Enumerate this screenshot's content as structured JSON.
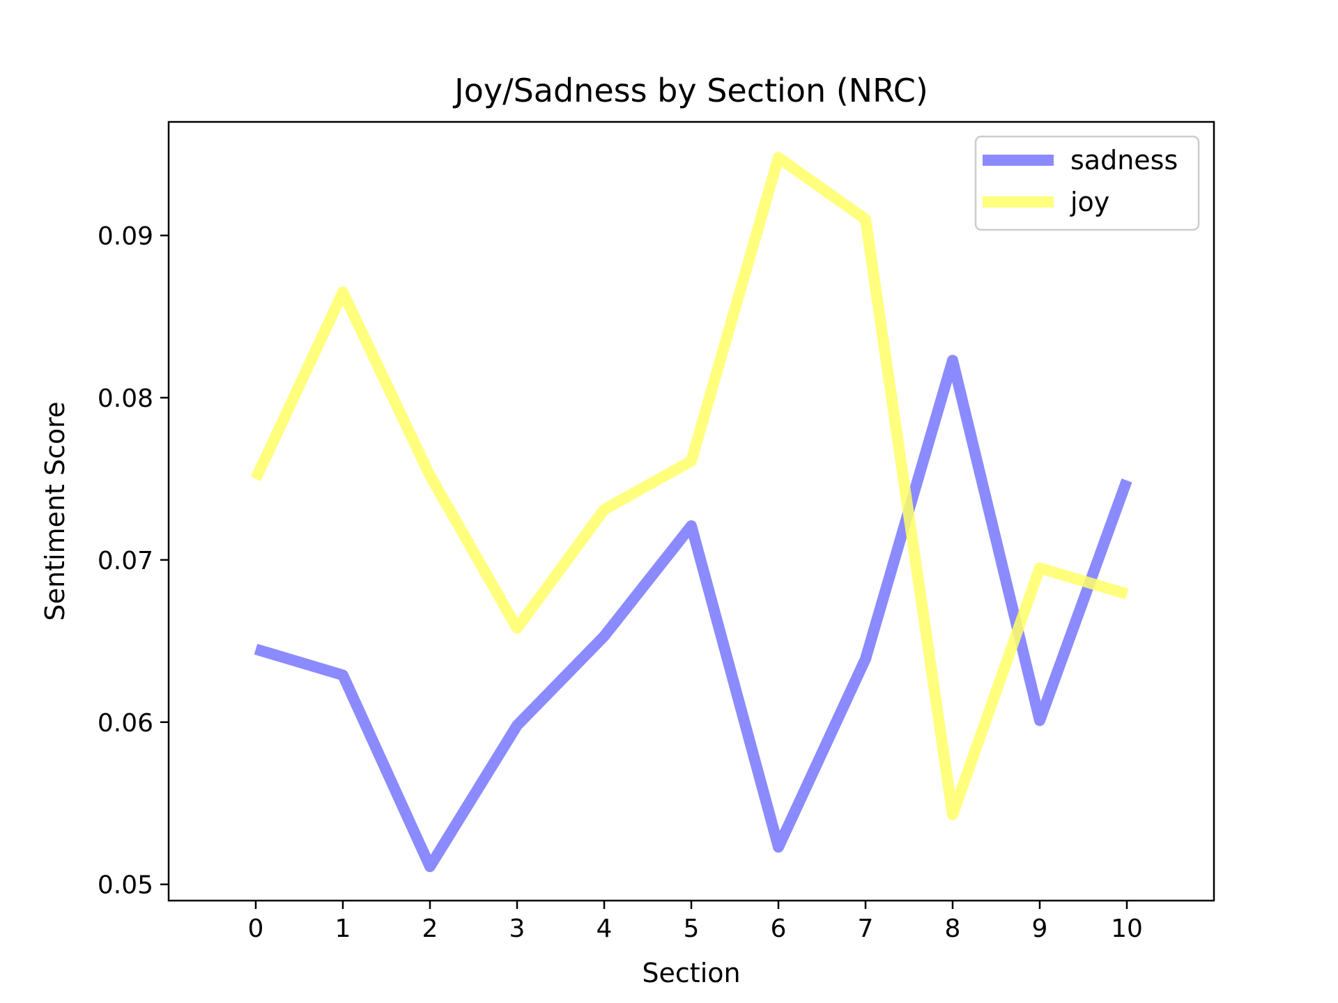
{
  "chart_data": {
    "type": "line",
    "title": "Joy/Sadness by Section (NRC)",
    "xlabel": "Section",
    "ylabel": "Sentiment Score",
    "x": [
      0,
      1,
      2,
      3,
      4,
      5,
      6,
      7,
      8,
      9,
      10
    ],
    "xlim": [
      -1,
      11
    ],
    "ylim": [
      0.049,
      0.097
    ],
    "xticks": [
      0,
      1,
      2,
      3,
      4,
      5,
      6,
      7,
      8,
      9,
      10
    ],
    "xtick_labels": [
      "0",
      "1",
      "2",
      "3",
      "4",
      "5",
      "6",
      "7",
      "8",
      "9",
      "10"
    ],
    "yticks": [
      0.05,
      0.06,
      0.07,
      0.08,
      0.09
    ],
    "ytick_labels": [
      "0.05",
      "0.06",
      "0.07",
      "0.08",
      "0.09"
    ],
    "grid": false,
    "legend_position": "top-right",
    "series": [
      {
        "name": "sadness",
        "color": "#7777ff",
        "values": [
          0.0645,
          0.0629,
          0.0511,
          0.0598,
          0.0653,
          0.0721,
          0.0523,
          0.0639,
          0.0823,
          0.0601,
          0.0749
        ]
      },
      {
        "name": "joy",
        "color": "#ffff66",
        "values": [
          0.075,
          0.0865,
          0.0752,
          0.0658,
          0.0731,
          0.0761,
          0.0948,
          0.091,
          0.0543,
          0.0695,
          0.0679
        ]
      }
    ]
  }
}
